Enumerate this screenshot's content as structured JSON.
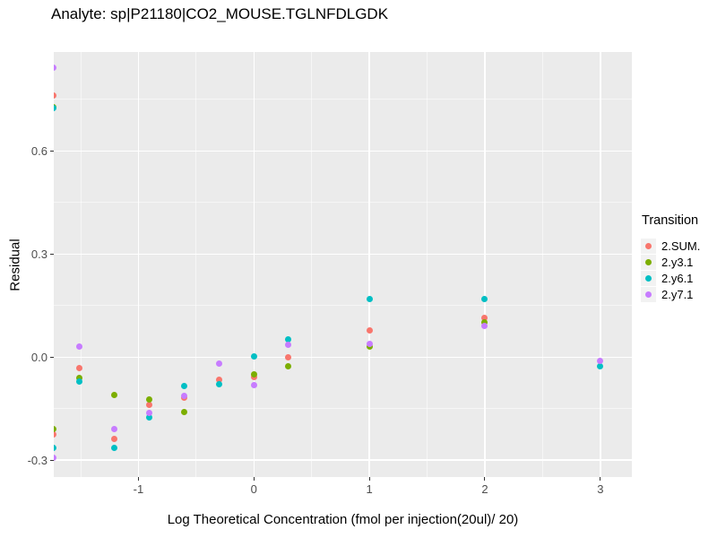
{
  "title": "Analyte: sp|P21180|CO2_MOUSE.TGLNFDLGDK",
  "colors": {
    "panel_background": "#EBEBEB",
    "gridline": "#FFFFFF",
    "tick_text": "#4D4D4D",
    "legend_key_background": "#F2F2F2"
  },
  "chart_data": {
    "type": "scatter",
    "title": "Analyte: sp|P21180|CO2_MOUSE.TGLNFDLGDK",
    "xlabel": "Log Theoretical Concentration (fmol per injection(20ul)/ 20)",
    "ylabel": "Residual",
    "xlim": [
      -1.733,
      3.273
    ],
    "ylim": [
      -0.349,
      0.888
    ],
    "grid": "major-and-minor",
    "x_ticks": [
      {
        "v": -1,
        "label": "-1"
      },
      {
        "v": 0,
        "label": "0"
      },
      {
        "v": 1,
        "label": "1"
      },
      {
        "v": 2,
        "label": "2"
      },
      {
        "v": 3,
        "label": "3"
      }
    ],
    "y_ticks": [
      {
        "v": -0.3,
        "label": "-0.3"
      },
      {
        "v": 0.0,
        "label": "0.0"
      },
      {
        "v": 0.3,
        "label": "0.3"
      },
      {
        "v": 0.6,
        "label": "0.6"
      }
    ],
    "legend": {
      "title": "Transition",
      "position": "right",
      "entries": [
        {
          "label": "2.SUM.",
          "color": "#F8766D"
        },
        {
          "label": "2.y3.1",
          "color": "#7CAE00"
        },
        {
          "label": "2.y6.1",
          "color": "#00BFC4"
        },
        {
          "label": "2.y7.1",
          "color": "#C77CFF"
        }
      ]
    },
    "series": [
      {
        "name": "2.SUM.",
        "color": "#F8766D",
        "points": [
          {
            "x": -1.735,
            "y": 0.761
          },
          {
            "x": -1.735,
            "y": -0.225
          },
          {
            "x": -1.51,
            "y": -0.031
          },
          {
            "x": -1.21,
            "y": -0.237
          },
          {
            "x": -0.903,
            "y": -0.138
          },
          {
            "x": -0.6,
            "y": -0.119
          },
          {
            "x": -0.3,
            "y": -0.065
          },
          {
            "x": 0.0,
            "y": -0.058
          },
          {
            "x": 0.3,
            "y": 0.0
          },
          {
            "x": 1.0,
            "y": 0.078
          },
          {
            "x": 2.0,
            "y": 0.113
          }
        ]
      },
      {
        "name": "2.y3.1",
        "color": "#7CAE00",
        "points": [
          {
            "x": -1.735,
            "y": 0.728
          },
          {
            "x": -1.735,
            "y": -0.21
          },
          {
            "x": -1.51,
            "y": -0.061
          },
          {
            "x": -1.21,
            "y": -0.111
          },
          {
            "x": -0.903,
            "y": -0.122
          },
          {
            "x": -0.6,
            "y": -0.161
          },
          {
            "x": 0.0,
            "y": -0.051
          },
          {
            "x": 0.3,
            "y": -0.026
          },
          {
            "x": 1.0,
            "y": 0.03
          },
          {
            "x": 2.0,
            "y": 0.102
          }
        ]
      },
      {
        "name": "2.y6.1",
        "color": "#00BFC4",
        "points": [
          {
            "x": -1.735,
            "y": 0.724
          },
          {
            "x": -1.735,
            "y": -0.265
          },
          {
            "x": -1.51,
            "y": -0.072
          },
          {
            "x": -1.21,
            "y": -0.264
          },
          {
            "x": -0.903,
            "y": -0.176
          },
          {
            "x": -0.6,
            "y": -0.085
          },
          {
            "x": -0.3,
            "y": -0.08
          },
          {
            "x": 0.0,
            "y": 0.001
          },
          {
            "x": 0.3,
            "y": 0.052
          },
          {
            "x": 1.0,
            "y": 0.168
          },
          {
            "x": 2.0,
            "y": 0.168
          },
          {
            "x": 3.0,
            "y": -0.026
          }
        ]
      },
      {
        "name": "2.y7.1",
        "color": "#C77CFF",
        "points": [
          {
            "x": -1.735,
            "y": 0.842
          },
          {
            "x": -1.735,
            "y": -0.293
          },
          {
            "x": -1.51,
            "y": 0.03
          },
          {
            "x": -1.21,
            "y": -0.209
          },
          {
            "x": -0.903,
            "y": -0.163
          },
          {
            "x": -0.6,
            "y": -0.113
          },
          {
            "x": -0.3,
            "y": -0.019
          },
          {
            "x": 0.0,
            "y": -0.081
          },
          {
            "x": 0.3,
            "y": 0.037
          },
          {
            "x": 1.0,
            "y": 0.039
          },
          {
            "x": 2.0,
            "y": 0.091
          },
          {
            "x": 3.0,
            "y": -0.01
          }
        ]
      }
    ]
  }
}
